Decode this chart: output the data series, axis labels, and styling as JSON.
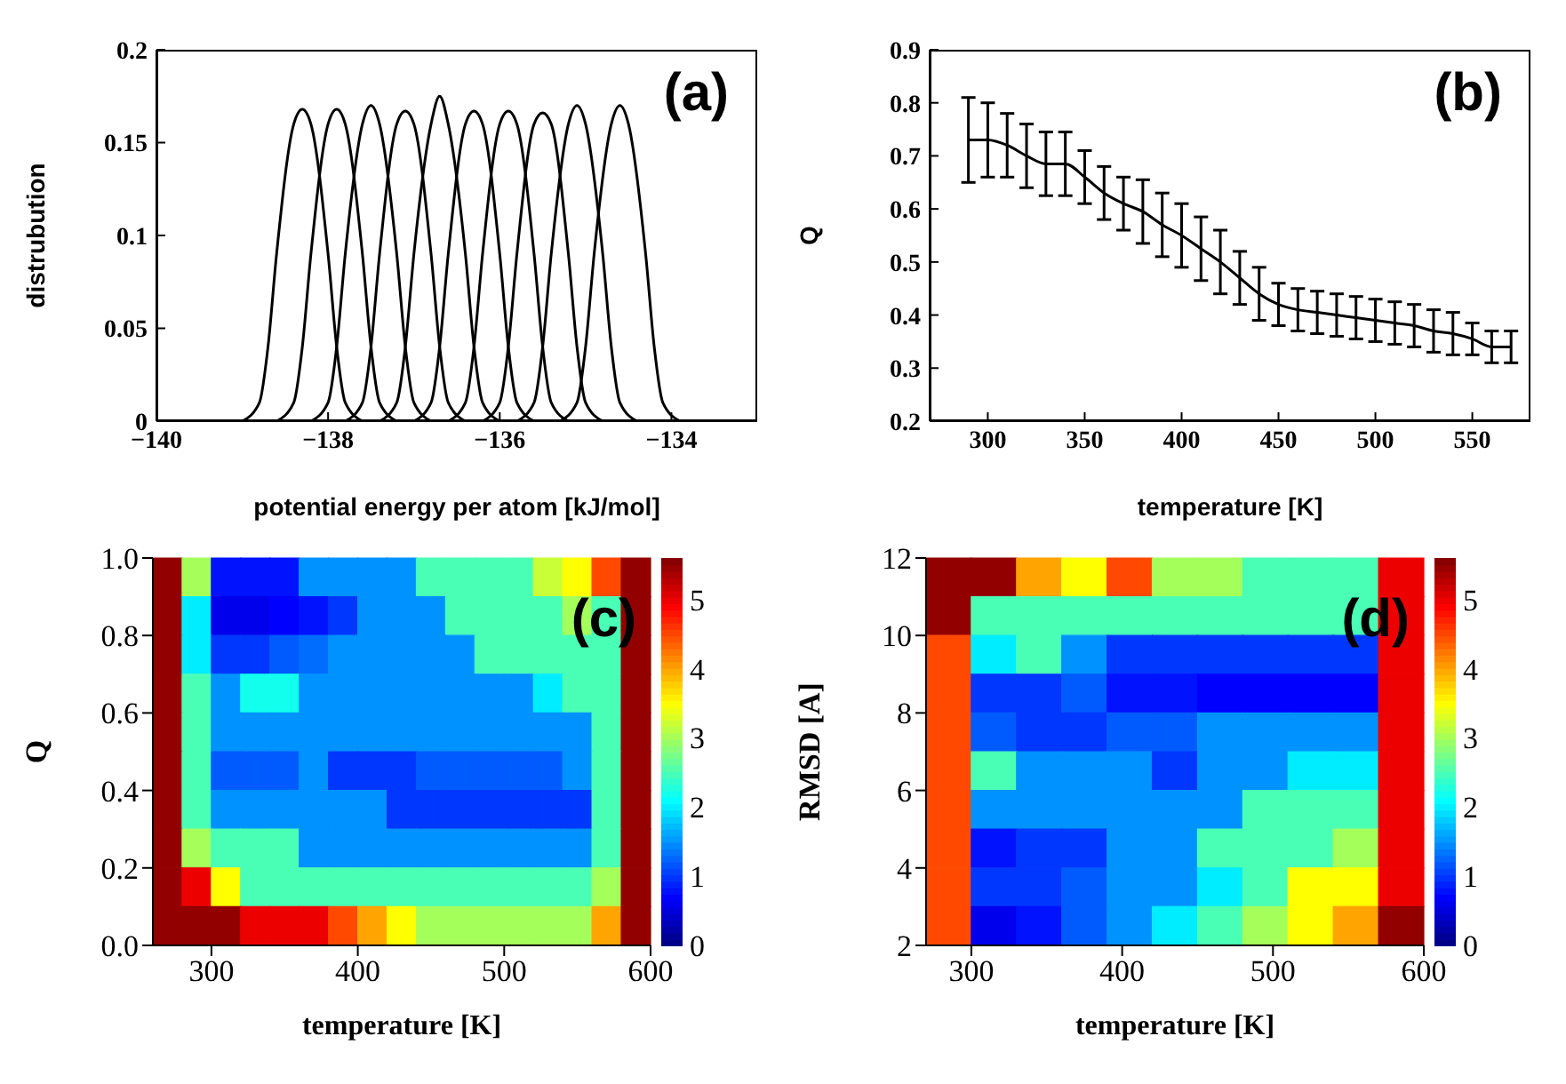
{
  "chart_data": [
    {
      "type": "line",
      "xlabel": "potential energy per atom [kJ/mol]",
      "ylabel": "distrubution",
      "annotations": [
        "(a)"
      ],
      "marker": "none",
      "xlim": [
        -140,
        -133
      ],
      "xticks": [
        {
          "value": -140,
          "label": "−140"
        },
        {
          "value": -138,
          "label": "−138"
        },
        {
          "value": -136,
          "label": "−136"
        },
        {
          "value": -134,
          "label": "−134"
        }
      ],
      "ylim": [
        0,
        0.2
      ],
      "yticks": [
        0,
        0.05,
        0.1,
        0.15,
        0.2
      ],
      "series": [
        {
          "color": "#000000",
          "x": [
            -139.0,
            -138.8,
            -138.7,
            -138.6,
            -138.4,
            -138.3,
            -138.2,
            -138.0,
            -137.9,
            -137.8,
            -137.6
          ],
          "values": [
            0,
            0.01,
            0.04,
            0.09,
            0.16,
            0.168,
            0.16,
            0.09,
            0.04,
            0.01,
            0
          ]
        },
        {
          "color": "#000000",
          "x": [
            -138.6,
            -138.4,
            -138.3,
            -138.2,
            -138.0,
            -137.9,
            -137.8,
            -137.6,
            -137.5,
            -137.4,
            -137.2
          ],
          "values": [
            0,
            0.01,
            0.04,
            0.09,
            0.16,
            0.168,
            0.16,
            0.09,
            0.04,
            0.01,
            0
          ]
        },
        {
          "color": "#000000",
          "x": [
            -138.2,
            -138.0,
            -137.9,
            -137.8,
            -137.6,
            -137.5,
            -137.4,
            -137.2,
            -137.1,
            -137.0,
            -136.8
          ],
          "values": [
            0,
            0.01,
            0.04,
            0.09,
            0.16,
            0.17,
            0.16,
            0.09,
            0.04,
            0.01,
            0
          ]
        },
        {
          "color": "#000000",
          "x": [
            -137.8,
            -137.6,
            -137.5,
            -137.4,
            -137.2,
            -137.1,
            -137.0,
            -136.8,
            -136.7,
            -136.6,
            -136.4
          ],
          "values": [
            0,
            0.01,
            0.04,
            0.09,
            0.16,
            0.167,
            0.16,
            0.09,
            0.04,
            0.01,
            0
          ]
        },
        {
          "color": "#000000",
          "x": [
            -137.4,
            -137.2,
            -137.1,
            -137.0,
            -136.8,
            -136.7,
            -136.6,
            -136.4,
            -136.3,
            -136.2,
            -136.0
          ],
          "values": [
            0,
            0.01,
            0.04,
            0.09,
            0.16,
            0.175,
            0.16,
            0.09,
            0.04,
            0.01,
            0
          ]
        },
        {
          "color": "#000000",
          "x": [
            -137.0,
            -136.8,
            -136.7,
            -136.6,
            -136.4,
            -136.3,
            -136.2,
            -136.0,
            -135.9,
            -135.8,
            -135.6
          ],
          "values": [
            0,
            0.01,
            0.04,
            0.09,
            0.16,
            0.167,
            0.16,
            0.09,
            0.04,
            0.01,
            0
          ]
        },
        {
          "color": "#000000",
          "x": [
            -136.6,
            -136.4,
            -136.3,
            -136.2,
            -136.0,
            -135.9,
            -135.8,
            -135.6,
            -135.5,
            -135.4,
            -135.2
          ],
          "values": [
            0,
            0.01,
            0.04,
            0.09,
            0.16,
            0.167,
            0.16,
            0.09,
            0.04,
            0.01,
            0
          ]
        },
        {
          "color": "#000000",
          "x": [
            -136.2,
            -136.0,
            -135.9,
            -135.8,
            -135.6,
            -135.5,
            -135.4,
            -135.2,
            -135.1,
            -135.0,
            -134.8
          ],
          "values": [
            0,
            0.01,
            0.04,
            0.09,
            0.16,
            0.166,
            0.16,
            0.09,
            0.04,
            0.01,
            0
          ]
        },
        {
          "color": "#000000",
          "x": [
            -135.8,
            -135.6,
            -135.5,
            -135.4,
            -135.2,
            -135.1,
            -135.0,
            -134.8,
            -134.7,
            -134.6,
            -134.4
          ],
          "values": [
            0,
            0.01,
            0.04,
            0.09,
            0.16,
            0.17,
            0.16,
            0.09,
            0.04,
            0.01,
            0
          ]
        },
        {
          "color": "#000000",
          "x": [
            -135.3,
            -135.1,
            -135.0,
            -134.9,
            -134.7,
            -134.6,
            -134.5,
            -134.3,
            -134.2,
            -134.1,
            -133.9
          ],
          "values": [
            0,
            0.01,
            0.04,
            0.09,
            0.16,
            0.17,
            0.16,
            0.09,
            0.04,
            0.01,
            0
          ]
        }
      ]
    },
    {
      "type": "line",
      "xlabel": "temperature [K]",
      "ylabel": "Q",
      "annotations": [
        "(b)"
      ],
      "marker": "none",
      "xlim": [
        270,
        580
      ],
      "xticks": [
        300,
        350,
        400,
        450,
        500,
        550
      ],
      "ylim": [
        0.2,
        0.9
      ],
      "yticks": [
        0.2,
        0.3,
        0.4,
        0.5,
        0.6,
        0.7,
        0.8,
        0.9
      ],
      "x": [
        290,
        300,
        310,
        320,
        330,
        340,
        350,
        360,
        370,
        380,
        390,
        400,
        410,
        420,
        430,
        440,
        450,
        460,
        470,
        480,
        490,
        500,
        510,
        520,
        530,
        540,
        550,
        560,
        570
      ],
      "series": [
        {
          "color": "#000000",
          "values": [
            0.73,
            0.73,
            0.72,
            0.7,
            0.685,
            0.685,
            0.66,
            0.63,
            0.61,
            0.595,
            0.57,
            0.55,
            0.525,
            0.5,
            0.47,
            0.44,
            0.42,
            0.41,
            0.405,
            0.4,
            0.395,
            0.39,
            0.385,
            0.38,
            0.37,
            0.365,
            0.355,
            0.34,
            0.34
          ],
          "errors": [
            0.08,
            0.07,
            0.06,
            0.06,
            0.06,
            0.06,
            0.05,
            0.05,
            0.05,
            0.06,
            0.06,
            0.06,
            0.06,
            0.06,
            0.05,
            0.05,
            0.04,
            0.04,
            0.04,
            0.04,
            0.04,
            0.04,
            0.04,
            0.04,
            0.04,
            0.04,
            0.03,
            0.03,
            0.03
          ]
        }
      ]
    },
    {
      "type": "heatmap",
      "xlabel": "temperature [K]",
      "ylabel": "Q",
      "annotations": [
        "(c)"
      ],
      "xlim": [
        260,
        600
      ],
      "xticks": [
        300,
        400,
        500,
        600
      ],
      "ylim": [
        0,
        1
      ],
      "yticks": [
        {
          "value": 0,
          "label": "0.0"
        },
        0.2,
        0.4,
        0.6,
        0.8,
        {
          "value": 1,
          "label": "1.0"
        }
      ],
      "clim": [
        0,
        5.6
      ],
      "cticks": [
        0,
        1,
        2,
        3,
        4,
        5
      ],
      "x": [
        270,
        290,
        310,
        330,
        350,
        370,
        390,
        410,
        430,
        450,
        470,
        490,
        510,
        530,
        550,
        570,
        590
      ],
      "y": [
        0.95,
        0.85,
        0.75,
        0.65,
        0.55,
        0.45,
        0.35,
        0.25,
        0.15,
        0.05
      ],
      "cells": [
        [
          5.5,
          3,
          0.8,
          0.8,
          0.8,
          1.5,
          1.5,
          1.5,
          1.5,
          2.5,
          2.5,
          2.5,
          2.5,
          3.2,
          3.5,
          4.5,
          5.5
        ],
        [
          5.5,
          2,
          0.6,
          0.6,
          0.7,
          0.8,
          1.0,
          1.5,
          1.5,
          1.5,
          2.5,
          2.5,
          2.5,
          2.5,
          3.0,
          2.5,
          5.5
        ],
        [
          5.5,
          2,
          1.0,
          1.0,
          1.2,
          1.3,
          1.5,
          1.5,
          1.5,
          1.5,
          1.5,
          2.5,
          2.5,
          2.5,
          2.5,
          2.5,
          5.5
        ],
        [
          5.5,
          2.5,
          1.5,
          2.2,
          2.2,
          1.5,
          1.5,
          1.5,
          1.5,
          1.5,
          1.5,
          1.5,
          1.5,
          2.0,
          2.5,
          2.5,
          5.5
        ],
        [
          5.5,
          2.5,
          1.5,
          1.5,
          1.5,
          1.5,
          1.5,
          1.5,
          1.5,
          1.5,
          1.5,
          1.5,
          1.5,
          1.5,
          1.5,
          2.5,
          5.5
        ],
        [
          5.5,
          2.5,
          1.2,
          1.2,
          1.2,
          1.5,
          1.0,
          1.0,
          1.0,
          1.2,
          1.2,
          1.2,
          1.2,
          1.2,
          1.5,
          2.5,
          5.5
        ],
        [
          5.5,
          2.5,
          1.5,
          1.5,
          1.5,
          1.5,
          1.5,
          1.5,
          1.0,
          1.0,
          1.0,
          1.0,
          1.0,
          1.0,
          1.0,
          2.5,
          5.5
        ],
        [
          5.5,
          3.0,
          2.5,
          2.5,
          2.5,
          1.5,
          1.5,
          1.5,
          1.5,
          1.5,
          1.5,
          1.5,
          1.5,
          1.5,
          1.5,
          2.5,
          5.5
        ],
        [
          5.5,
          5.0,
          3.5,
          2.5,
          2.5,
          2.5,
          2.5,
          2.5,
          2.5,
          2.5,
          2.5,
          2.5,
          2.5,
          2.5,
          2.5,
          3.0,
          5.5
        ],
        [
          5.5,
          5.5,
          5.5,
          5.0,
          5.0,
          5.0,
          4.5,
          4.0,
          3.5,
          3.0,
          3.0,
          3.0,
          3.0,
          3.0,
          3.0,
          4.0,
          5.5
        ]
      ]
    },
    {
      "type": "heatmap",
      "xlabel": "temperature [K]",
      "ylabel": "RMSD [A]",
      "annotations": [
        "(d)"
      ],
      "xlim": [
        270,
        600
      ],
      "xticks": [
        300,
        400,
        500,
        600
      ],
      "ylim": [
        2,
        12
      ],
      "yticks": [
        2,
        4,
        6,
        8,
        10,
        12
      ],
      "clim": [
        0,
        5.6
      ],
      "cticks": [
        0,
        1,
        2,
        3,
        4,
        5
      ],
      "x": [
        285,
        315,
        345,
        375,
        405,
        435,
        465,
        495,
        525,
        555,
        585
      ],
      "y": [
        11.5,
        10.5,
        9.5,
        8.5,
        7.5,
        6.5,
        5.5,
        4.5,
        3.5,
        2.5
      ],
      "cells": [
        [
          5.5,
          5.5,
          4.0,
          3.5,
          4.5,
          3.0,
          3.0,
          2.5,
          2.5,
          2.5,
          5.0
        ],
        [
          5.5,
          2.5,
          2.5,
          2.5,
          2.5,
          2.5,
          2.5,
          2.5,
          2.5,
          2.5,
          5.0
        ],
        [
          4.5,
          2.0,
          2.5,
          1.5,
          1.0,
          1.0,
          1.0,
          1.0,
          1.0,
          1.0,
          5.0
        ],
        [
          4.5,
          1.0,
          1.0,
          1.2,
          0.8,
          0.8,
          0.7,
          0.7,
          0.7,
          0.7,
          5.0
        ],
        [
          4.5,
          1.2,
          1.0,
          1.0,
          1.2,
          1.2,
          1.5,
          1.5,
          1.5,
          1.5,
          5.0
        ],
        [
          4.5,
          2.5,
          1.5,
          1.5,
          1.5,
          1.0,
          1.5,
          1.5,
          2.0,
          2.0,
          5.0
        ],
        [
          4.5,
          1.5,
          1.5,
          1.5,
          1.5,
          1.5,
          1.5,
          2.5,
          2.5,
          2.5,
          5.0
        ],
        [
          4.5,
          0.8,
          1.0,
          1.0,
          1.5,
          1.5,
          2.5,
          2.5,
          2.5,
          3.0,
          5.0
        ],
        [
          4.5,
          1.0,
          1.0,
          1.2,
          1.5,
          1.5,
          2.0,
          2.5,
          3.5,
          3.5,
          5.0
        ],
        [
          4.5,
          0.6,
          0.8,
          1.2,
          1.5,
          2.0,
          2.5,
          3.0,
          3.5,
          4.0,
          5.5
        ]
      ]
    }
  ]
}
